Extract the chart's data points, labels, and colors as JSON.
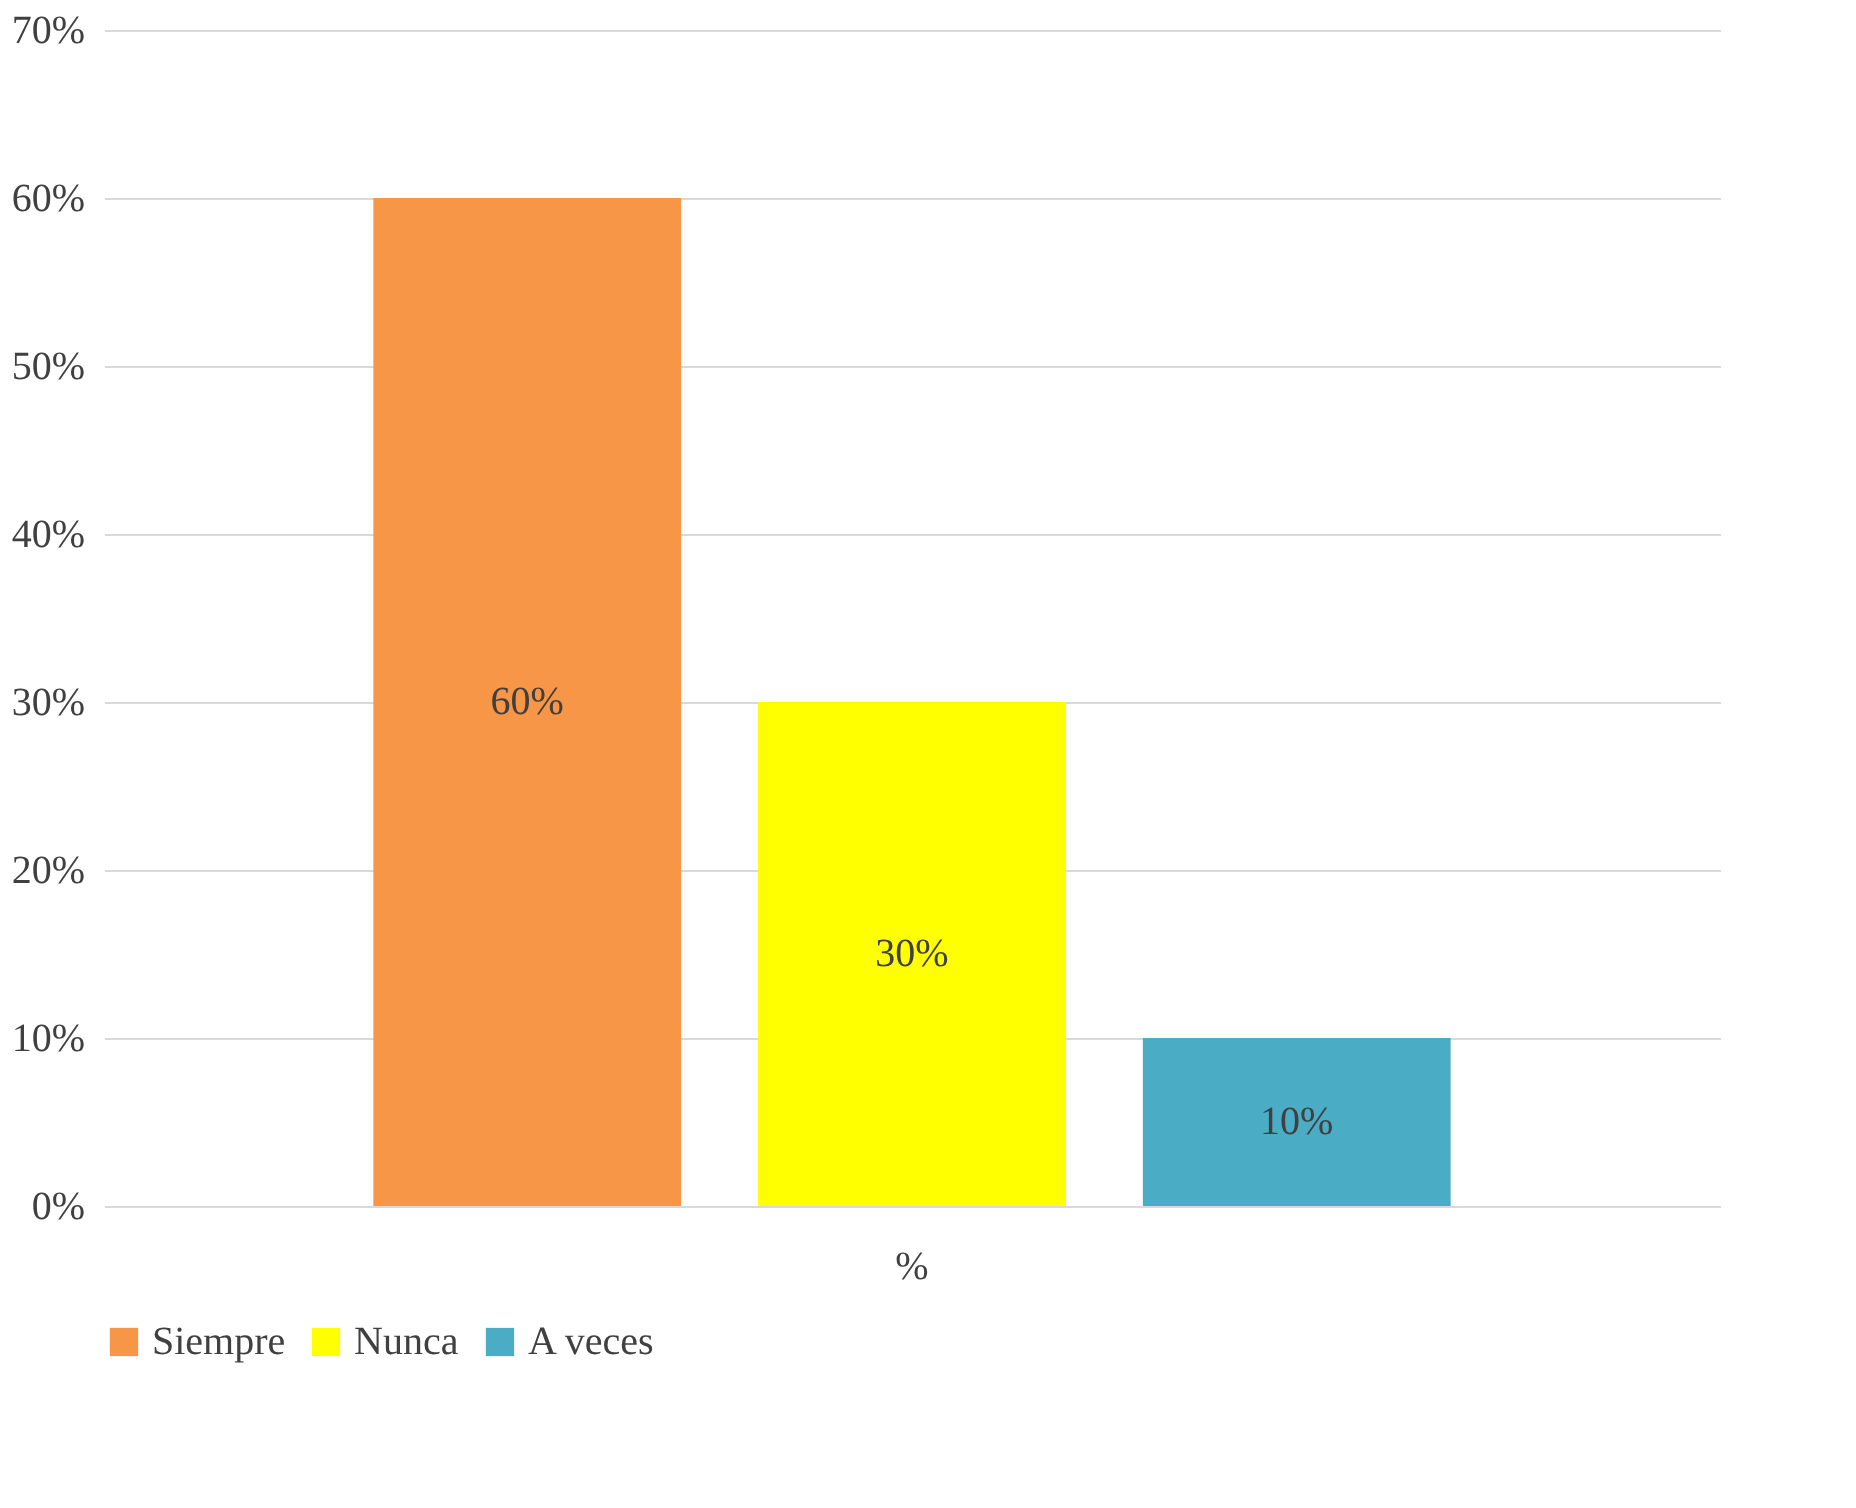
{
  "chart_data": {
    "type": "bar",
    "categories": [
      "%"
    ],
    "series": [
      {
        "name": "Siempre",
        "color": "#f79646",
        "values": [
          60
        ],
        "value_labels": [
          "60%"
        ]
      },
      {
        "name": "Nunca",
        "color": "#ffff00",
        "values": [
          30
        ],
        "value_labels": [
          "30%"
        ]
      },
      {
        "name": "A veces",
        "color": "#4bacc6",
        "values": [
          10
        ],
        "value_labels": [
          "10%"
        ]
      }
    ],
    "ylim": [
      0,
      70
    ],
    "yticks": [
      {
        "value": 0,
        "label": "0%"
      },
      {
        "value": 10,
        "label": "10%"
      },
      {
        "value": 20,
        "label": "20%"
      },
      {
        "value": 30,
        "label": "30%"
      },
      {
        "value": 40,
        "label": "40%"
      },
      {
        "value": 50,
        "label": "50%"
      },
      {
        "value": 60,
        "label": "60%"
      },
      {
        "value": 70,
        "label": "70%"
      }
    ],
    "grid": "y",
    "legend": "bottom"
  }
}
